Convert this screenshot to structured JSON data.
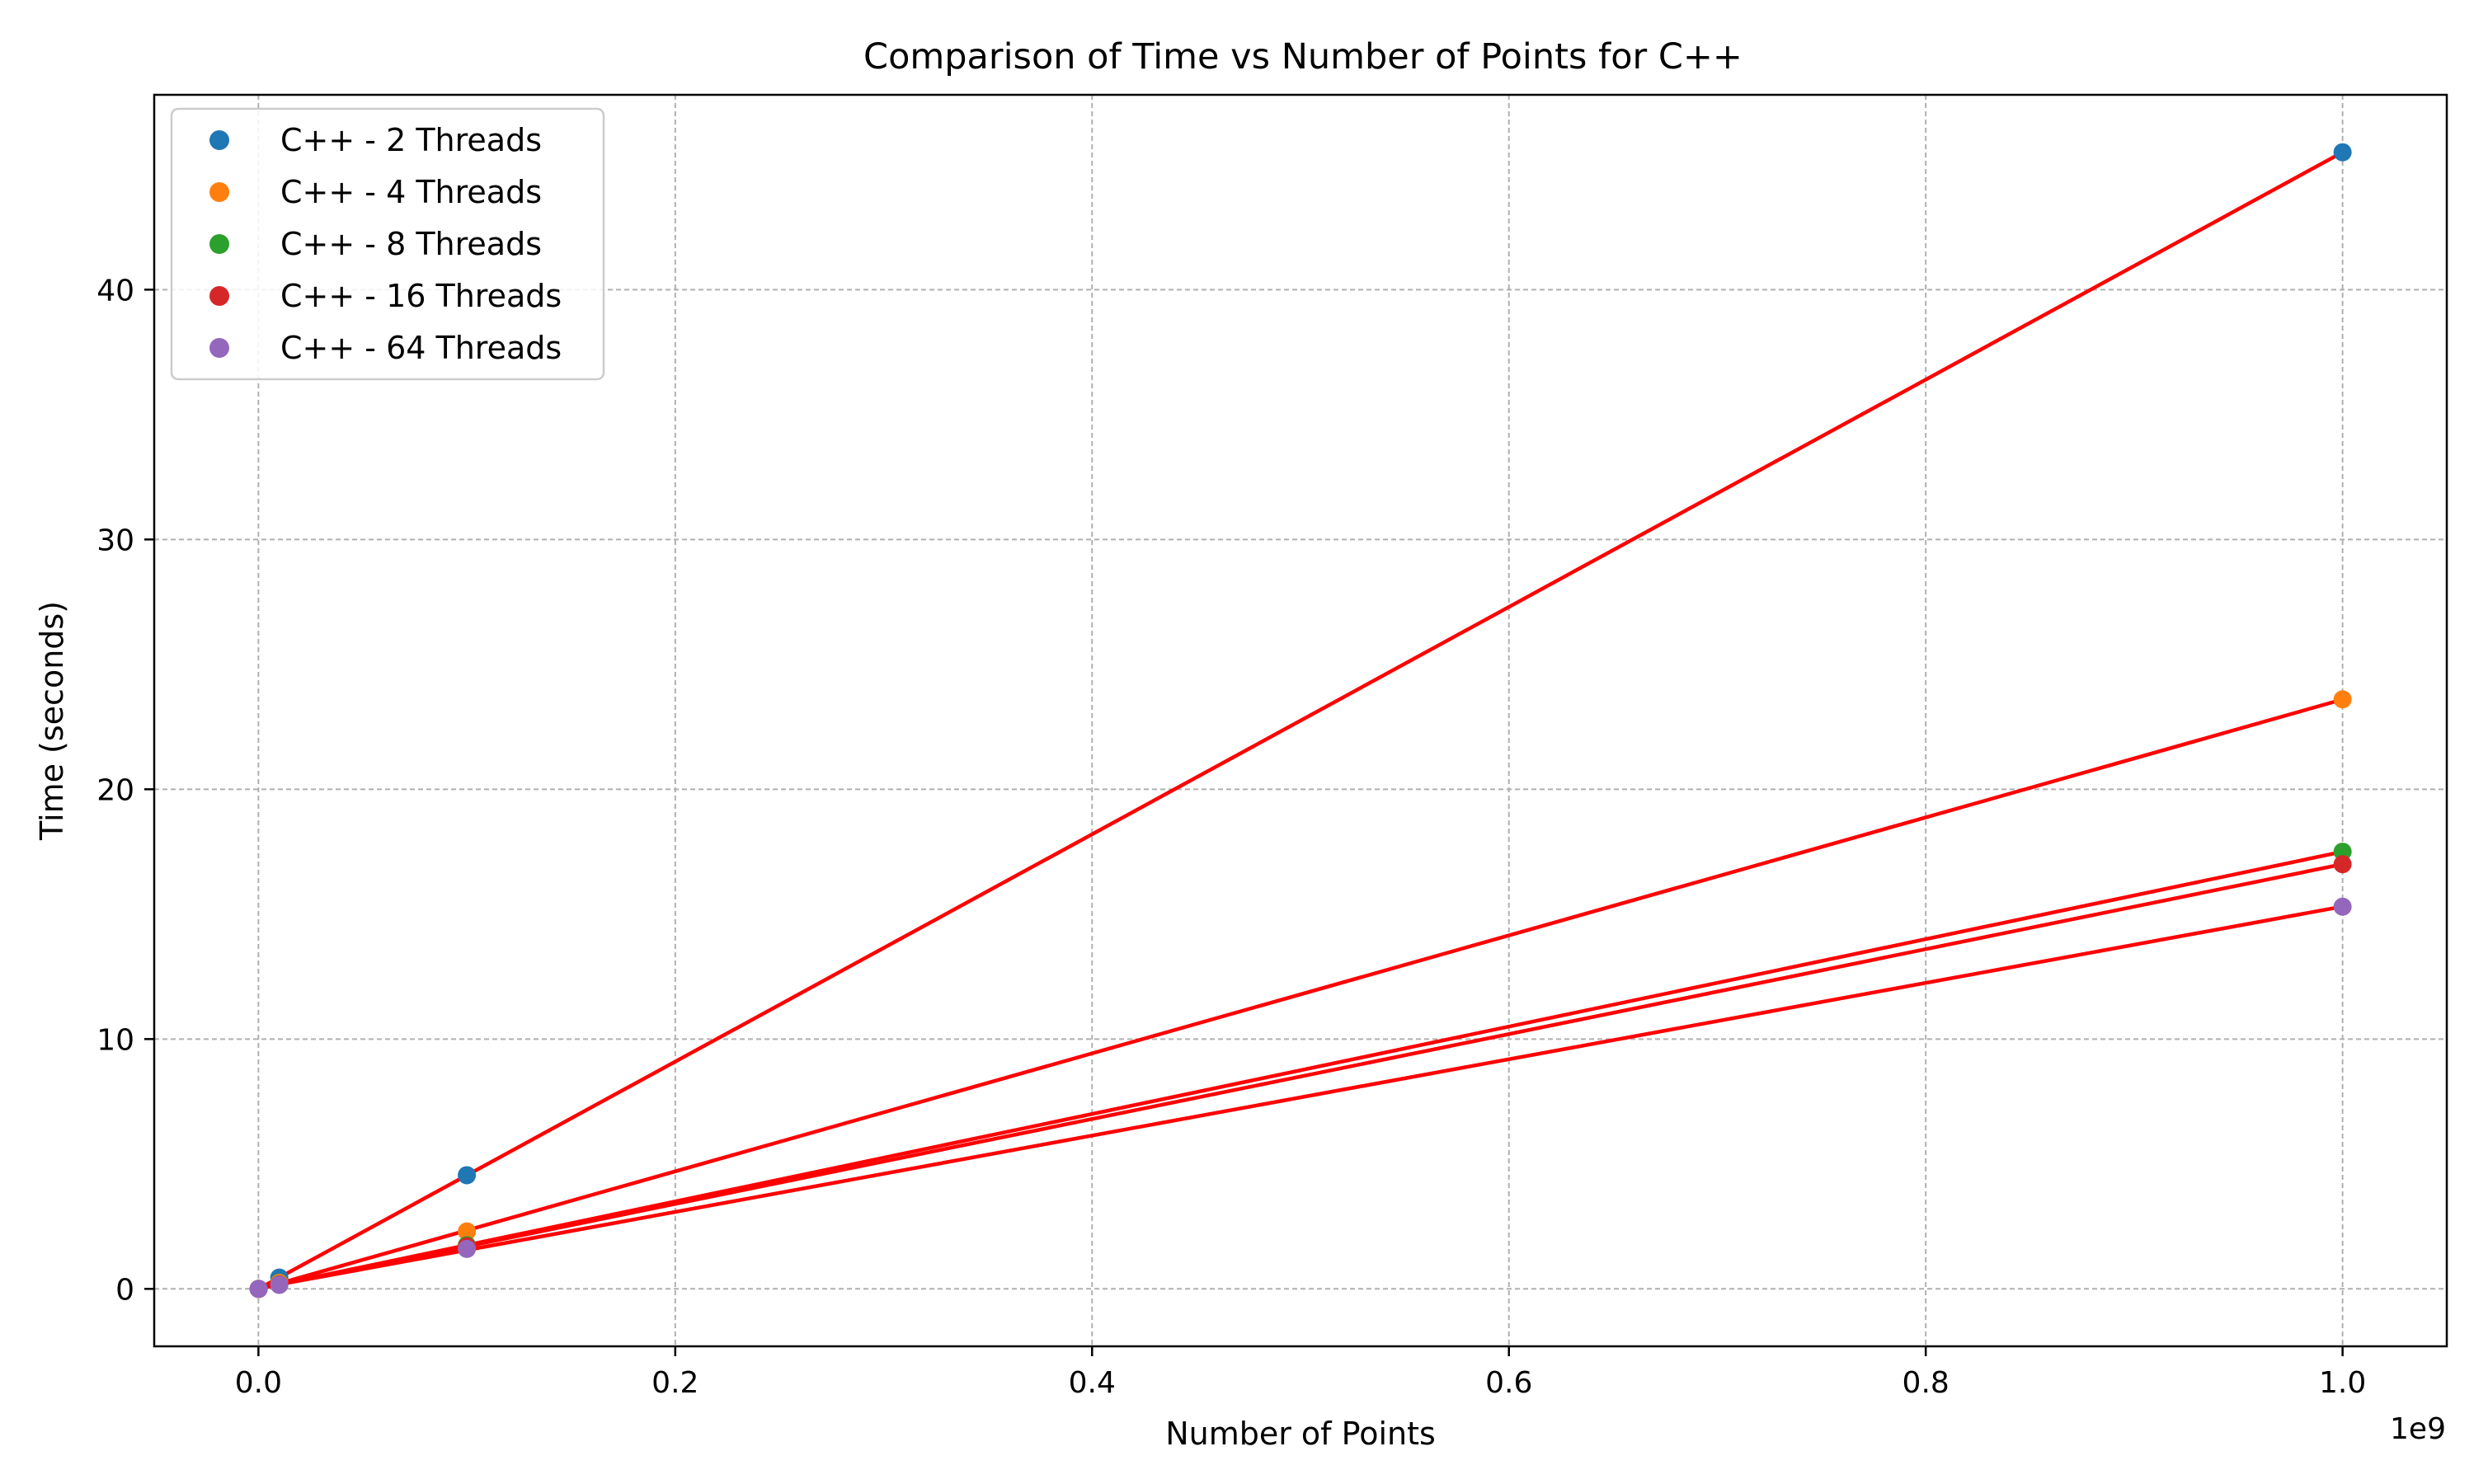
{
  "chart_data": {
    "type": "scatter",
    "title": "Comparison of Time vs Number of Points for C++",
    "xlabel": "Number of Points",
    "ylabel": "Time (seconds)",
    "x_offset_label": "1e9",
    "xlim": [
      -0.05,
      1.05
    ],
    "ylim": [
      -2.3,
      47.8
    ],
    "x_ticks": [
      0.0,
      0.2,
      0.4,
      0.6,
      0.8,
      1.0
    ],
    "x_tick_labels": [
      "0.0",
      "0.2",
      "0.4",
      "0.6",
      "0.8",
      "1.0"
    ],
    "y_ticks": [
      0,
      10,
      20,
      30,
      40
    ],
    "y_tick_labels": [
      "0",
      "10",
      "20",
      "30",
      "40"
    ],
    "grid": true,
    "legend_position": "upper-left",
    "fit_line_color": "#ff0000",
    "x": [
      0.0001,
      0.01,
      0.1,
      1.0
    ],
    "series": [
      {
        "name": "C++ - 2 Threads",
        "color": "#1f77b4",
        "values": [
          0.0,
          0.45,
          4.55,
          45.5
        ]
      },
      {
        "name": "C++ - 4 Threads",
        "color": "#ff7f0e",
        "values": [
          0.0,
          0.24,
          2.3,
          23.6
        ]
      },
      {
        "name": "C++ - 8 Threads",
        "color": "#2ca02c",
        "values": [
          0.0,
          0.18,
          1.75,
          17.5
        ]
      },
      {
        "name": "C++ - 16 Threads",
        "color": "#d62728",
        "values": [
          0.0,
          0.17,
          1.7,
          17.0
        ]
      },
      {
        "name": "C++ - 64 Threads",
        "color": "#9467bd",
        "values": [
          0.0,
          0.16,
          1.6,
          15.3
        ]
      }
    ]
  }
}
